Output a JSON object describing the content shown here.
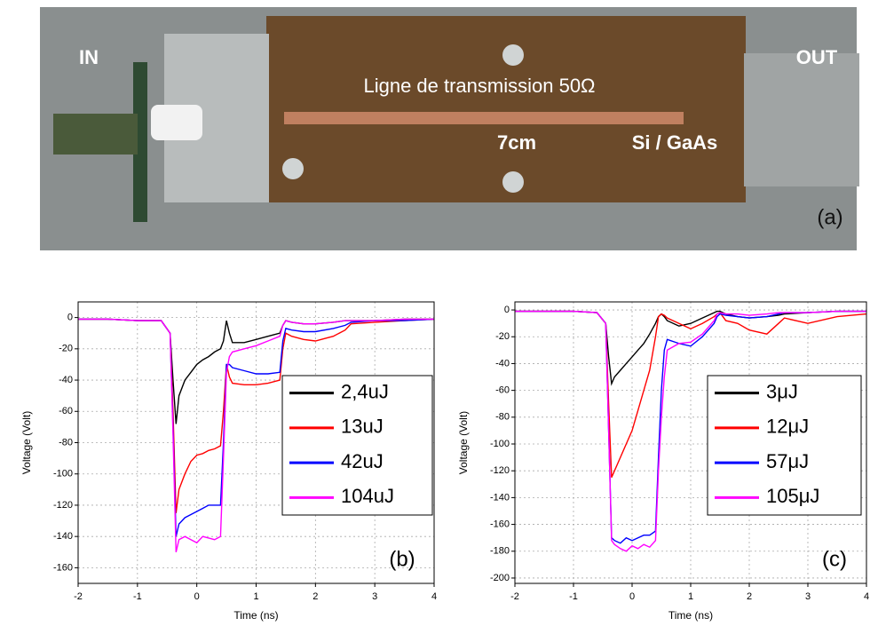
{
  "photo": {
    "labels": {
      "in": "IN",
      "out": "OUT",
      "line": "Ligne de transmission 50Ω",
      "length": "7cm",
      "switch": "Si / GaAs",
      "panel": "(a)"
    }
  },
  "chart_data": [
    {
      "type": "line",
      "panel_label": "(b)",
      "xlabel": "Time (ns)",
      "ylabel": "Voltage (Volt)",
      "grid": true,
      "xlim": [
        -2,
        4
      ],
      "xticks": [
        -2,
        -1,
        0,
        1,
        2,
        3,
        4
      ],
      "ylim": [
        -170,
        10
      ],
      "yticks": [
        0,
        -20,
        -40,
        -60,
        -80,
        -100,
        -120,
        -140,
        -160
      ],
      "x": [
        -2,
        -1.5,
        -1,
        -0.6,
        -0.45,
        -0.4,
        -0.35,
        -0.3,
        -0.2,
        -0.1,
        0,
        0.1,
        0.2,
        0.3,
        0.4,
        0.45,
        0.5,
        0.55,
        0.6,
        0.8,
        1,
        1.2,
        1.4,
        1.45,
        1.5,
        1.6,
        1.8,
        2,
        2.3,
        2.5,
        2.6,
        3,
        3.5,
        4
      ],
      "series": [
        {
          "name": "2,4uJ",
          "color": "#000000",
          "values": [
            -1,
            -1,
            -2,
            -2,
            -10,
            -40,
            -68,
            -50,
            -40,
            -35,
            -30,
            -27,
            -25,
            -22,
            -20,
            -15,
            -2,
            -10,
            -16,
            -16,
            -14,
            -12,
            -10,
            -5,
            -2,
            -3,
            -4,
            -4,
            -3,
            -2,
            -2,
            -2,
            -1,
            -1
          ]
        },
        {
          "name": "13uJ",
          "color": "#ff0000",
          "values": [
            -1,
            -1,
            -2,
            -2,
            -10,
            -60,
            -125,
            -110,
            -100,
            -92,
            -88,
            -87,
            -85,
            -84,
            -82,
            -60,
            -30,
            -38,
            -42,
            -43,
            -43,
            -42,
            -40,
            -20,
            -10,
            -12,
            -14,
            -15,
            -12,
            -8,
            -4,
            -3,
            -2,
            -1
          ]
        },
        {
          "name": "42uJ",
          "color": "#0000ff",
          "values": [
            -1,
            -1,
            -2,
            -2,
            -10,
            -70,
            -140,
            -132,
            -128,
            -126,
            -124,
            -122,
            -120,
            -120,
            -120,
            -80,
            -30,
            -30,
            -32,
            -34,
            -36,
            -36,
            -35,
            -15,
            -7,
            -8,
            -9,
            -9,
            -7,
            -5,
            -3,
            -2,
            -2,
            -1
          ]
        },
        {
          "name": "104uJ",
          "color": "#ff00ff",
          "values": [
            -1,
            -1,
            -2,
            -2,
            -10,
            -75,
            -150,
            -142,
            -140,
            -142,
            -144,
            -140,
            -141,
            -142,
            -140,
            -90,
            -35,
            -25,
            -22,
            -20,
            -18,
            -15,
            -12,
            -5,
            -2,
            -3,
            -4,
            -4,
            -3,
            -2,
            -2,
            -2,
            -1,
            -1
          ]
        }
      ]
    },
    {
      "type": "line",
      "panel_label": "(c)",
      "xlabel": "Time (ns)",
      "ylabel": "Voltage (Volt)",
      "grid": true,
      "xlim": [
        -2,
        4
      ],
      "xticks": [
        -2,
        -1,
        0,
        1,
        2,
        3,
        4
      ],
      "ylim": [
        -204,
        6
      ],
      "yticks": [
        0,
        -20,
        -40,
        -60,
        -80,
        -100,
        -120,
        -140,
        -160,
        -180,
        -200
      ],
      "x": [
        -2,
        -1.5,
        -1,
        -0.6,
        -0.45,
        -0.4,
        -0.35,
        -0.3,
        -0.2,
        -0.1,
        0,
        0.1,
        0.2,
        0.3,
        0.4,
        0.45,
        0.5,
        0.55,
        0.6,
        0.8,
        1,
        1.2,
        1.4,
        1.45,
        1.5,
        1.6,
        1.8,
        2,
        2.3,
        2.5,
        2.6,
        3,
        3.5,
        4
      ],
      "series": [
        {
          "name": "3μJ",
          "color": "#000000",
          "values": [
            -1,
            -1,
            -1,
            -2,
            -10,
            -35,
            -55,
            -50,
            -45,
            -40,
            -35,
            -30,
            -25,
            -18,
            -10,
            -5,
            -3,
            -5,
            -8,
            -12,
            -10,
            -6,
            -2,
            -1,
            -1,
            -3,
            -5,
            -6,
            -5,
            -4,
            -3,
            -2,
            -1,
            -1
          ]
        },
        {
          "name": "12μJ",
          "color": "#ff0000",
          "values": [
            -1,
            -1,
            -1,
            -2,
            -10,
            -70,
            -125,
            -120,
            -110,
            -100,
            -90,
            -75,
            -60,
            -45,
            -20,
            -5,
            -3,
            -4,
            -6,
            -10,
            -14,
            -10,
            -5,
            -3,
            -2,
            -8,
            -10,
            -15,
            -18,
            -10,
            -6,
            -10,
            -5,
            -3
          ]
        },
        {
          "name": "57μJ",
          "color": "#0000ff",
          "values": [
            -1,
            -1,
            -1,
            -2,
            -10,
            -90,
            -170,
            -172,
            -174,
            -170,
            -172,
            -170,
            -168,
            -168,
            -165,
            -110,
            -60,
            -30,
            -22,
            -25,
            -27,
            -20,
            -10,
            -5,
            -3,
            -4,
            -5,
            -6,
            -5,
            -3,
            -2,
            -2,
            -1,
            -1
          ]
        },
        {
          "name": "105μJ",
          "color": "#ff00ff",
          "values": [
            -1,
            -1,
            -1,
            -2,
            -10,
            -90,
            -172,
            -175,
            -178,
            -180,
            -176,
            -178,
            -175,
            -177,
            -172,
            -120,
            -80,
            -50,
            -30,
            -25,
            -24,
            -18,
            -8,
            -3,
            -2,
            -3,
            -3,
            -4,
            -3,
            -2,
            -2,
            -2,
            -1,
            -1
          ]
        }
      ]
    }
  ]
}
